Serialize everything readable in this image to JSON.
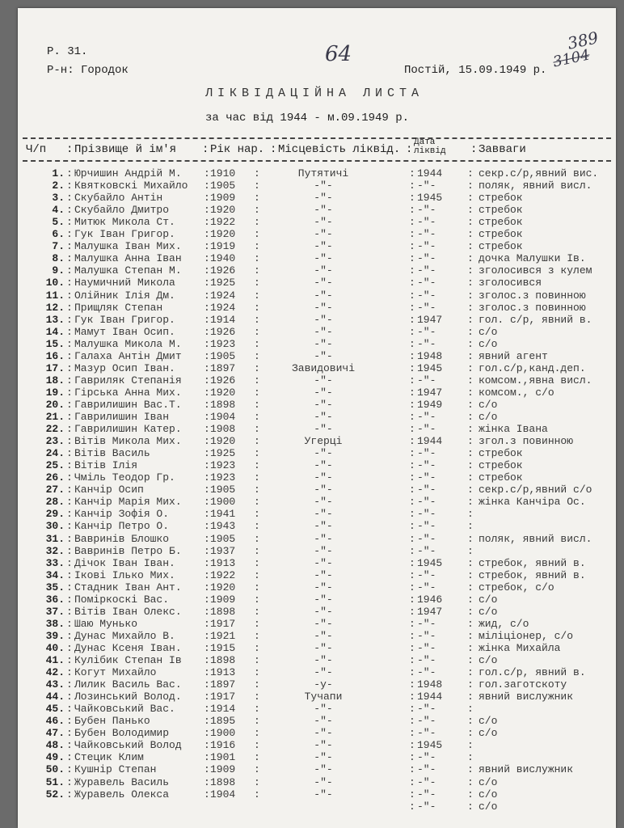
{
  "document": {
    "fund": "Р. 31.",
    "district": "Р-н: Городок",
    "place_date": "Постій, 15.09.1949 р.",
    "title": "ЛІКВІДАЦІЙНА ЛИСТА",
    "subtitle": "за час від 1944 - м.09.1949 р.",
    "handwritten_page": "64",
    "handwritten_number": "389",
    "handwritten_crossed": "3104"
  },
  "table": {
    "columns": [
      "Ч/п",
      "Прізвище й ім'я",
      "Рік нар.",
      "Місцевість ліквід.",
      "Дата ліквід",
      "Завваги"
    ],
    "rows": [
      [
        "1.",
        "Юрчишин Андрій М.",
        "1910",
        "Путятичі",
        "1944",
        "секр.с/р,явний вис."
      ],
      [
        "2.",
        "Квятковскі Михайло",
        "1905",
        "-\"-",
        "-\"-",
        "поляк, явний висл."
      ],
      [
        "3.",
        "Скубайло Антін",
        "1909",
        "-\"-",
        "1945",
        "стребок"
      ],
      [
        "4.",
        "Скубайло Дмитро",
        "1920",
        "-\"-",
        "-\"-",
        "стребок"
      ],
      [
        "5.",
        "Митюк Микола Ст.",
        "1922",
        "-\"-",
        "-\"-",
        "стребок"
      ],
      [
        "6.",
        "Гук Іван Григор.",
        "1920",
        "-\"-",
        "-\"-",
        "стребок"
      ],
      [
        "7.",
        "Малушка Іван Мих.",
        "1919",
        "-\"-",
        "-\"-",
        "стребок"
      ],
      [
        "8.",
        "Малушка Анна Іван",
        "1940",
        "-\"-",
        "-\"-",
        "дочка Малушки Ів."
      ],
      [
        "9.",
        "Малушка Степан М.",
        "1926",
        "-\"-",
        "-\"-",
        "зголосився з кулем"
      ],
      [
        "10.",
        "Наумичний Микола",
        "1925",
        "-\"-",
        "-\"-",
        "зголосився"
      ],
      [
        "11.",
        "Олійник Ілія Дм.",
        "1924",
        "-\"-",
        "-\"-",
        "зголос.з повинною"
      ],
      [
        "12.",
        "Прищляк Степан",
        "1924",
        "-\"-",
        "-\"-",
        "зголос.з повинною"
      ],
      [
        "13.",
        "Гук Іван Григор.",
        "1914",
        "-\"-",
        "1947",
        "гол. с/р, явний в."
      ],
      [
        "14.",
        "Мамут Іван Осип.",
        "1926",
        "-\"-",
        "-\"-",
        "с/о"
      ],
      [
        "15.",
        "Малушка Микола М.",
        "1923",
        "-\"-",
        "-\"-",
        "с/о"
      ],
      [
        "16.",
        "Галаха Антін Дмит",
        "1905",
        "-\"-",
        "1948",
        "явний агент"
      ],
      [
        "17.",
        "Мазур Осип Іван.",
        "1897",
        "Завидовичі",
        "1945",
        "гол.с/р,канд.деп."
      ],
      [
        "18.",
        "Гавриляк Степанія",
        "1926",
        "-\"-",
        "-\"-",
        "комсом.,явна висл."
      ],
      [
        "19.",
        "Гірська Анна Мих.",
        "1920",
        "-\"-",
        "1947",
        "комсом., с/о"
      ],
      [
        "20.",
        "Гаврилишин Вас.Т.",
        "1898",
        "-\"-",
        "1949",
        "с/о"
      ],
      [
        "21.",
        "Гаврилишин Іван",
        "1904",
        "-\"-",
        "-\"-",
        "с/о"
      ],
      [
        "22.",
        "Гаврилишин Катер.",
        "1908",
        "-\"-",
        "-\"-",
        "жінка Івана"
      ],
      [
        "23.",
        "Вітів Микола Мих.",
        "1920",
        "Угерці",
        "1944",
        "згол.з повинною"
      ],
      [
        "24.",
        "Вітів Василь",
        "1925",
        "-\"-",
        "-\"-",
        "стребок"
      ],
      [
        "25.",
        "Вітів Ілія",
        "1923",
        "-\"-",
        "-\"-",
        "стребок"
      ],
      [
        "26.",
        "Чміль Теодор Гр.",
        "1923",
        "-\"-",
        "-\"-",
        "стребок"
      ],
      [
        "27.",
        "Канчір Осип",
        "1905",
        "-\"-",
        "-\"-",
        "секр.с/р,явний с/о"
      ],
      [
        "28.",
        "Канчір Марія Мих.",
        "1900",
        "-\"-",
        "-\"-",
        "жінка Канчіра Ос."
      ],
      [
        "29.",
        "Канчір Зофія О.",
        "1941",
        "-\"-",
        "-\"-",
        ""
      ],
      [
        "30.",
        "Канчір Петро О.",
        "1943",
        "-\"-",
        "-\"-",
        ""
      ],
      [
        "31.",
        "Вавринів Блошко",
        "1905",
        "-\"-",
        "-\"-",
        "поляк, явний висл."
      ],
      [
        "32.",
        "Вавринів Петро Б.",
        "1937",
        "-\"-",
        "-\"-",
        ""
      ],
      [
        "33.",
        "Дічок Іван Іван.",
        "1913",
        "-\"-",
        "1945",
        "стребок, явний в."
      ],
      [
        "34.",
        "Ікові Ілько Мих.",
        "1922",
        "-\"-",
        "-\"-",
        "стребок, явний в."
      ],
      [
        "35.",
        "Стадник Іван Ант.",
        "1920",
        "-\"-",
        "-\"-",
        "стребок, с/о"
      ],
      [
        "36.",
        "Поміркоскі Вас.",
        "1909",
        "-\"-",
        "1946",
        "с/о"
      ],
      [
        "37.",
        "Вітів Іван Олекс.",
        "1898",
        "-\"-",
        "1947",
        "с/о"
      ],
      [
        "38.",
        "Шаю Мунько",
        "1917",
        "-\"-",
        "-\"-",
        "жид, с/о"
      ],
      [
        "39.",
        "Дунас Михайло В.",
        "1921",
        "-\"-",
        "-\"-",
        "міліціонер, с/о"
      ],
      [
        "40.",
        "Дунас Ксеня Іван.",
        "1915",
        "-\"-",
        "-\"-",
        "жінка Михайла"
      ],
      [
        "41.",
        "Кулібик Степан Ів",
        "1898",
        "-\"-",
        "-\"-",
        "с/о"
      ],
      [
        "42.",
        "Когут Михайло",
        "1913",
        "-\"-",
        "-\"-",
        "гол.с/р, явний в."
      ],
      [
        "43.",
        "Лилик Василь Вас.",
        "1897",
        "-у-",
        "1948",
        "гол.заготскоту"
      ],
      [
        "44.",
        "Лозинський Волод.",
        "1917",
        "Тучапи",
        "1944",
        "явний вислужник"
      ],
      [
        "45.",
        "Чайковський Вас.",
        "1914",
        "-\"-",
        "-\"-",
        ""
      ],
      [
        "46.",
        "Бубен Панько",
        "1895",
        "-\"-",
        "-\"-",
        "с/о"
      ],
      [
        "47.",
        "Бубен Володимир",
        "1900",
        "-\"-",
        "-\"-",
        "с/о"
      ],
      [
        "48.",
        "Чайковський Волод",
        "1916",
        "-\"-",
        "1945",
        ""
      ],
      [
        "49.",
        "Стецик Клим",
        "1901",
        "-\"-",
        "-\"-",
        ""
      ],
      [
        "50.",
        "Кушнір Степан",
        "1909",
        "-\"-",
        "-\"-",
        "явний вислужник"
      ],
      [
        "51.",
        "Журавель Василь",
        "1898",
        "-\"-",
        "-\"-",
        "с/о"
      ],
      [
        "52.",
        "Журавель Олекса",
        "1904",
        "-\"-",
        "-\"-",
        "с/о"
      ],
      [
        "",
        "",
        "",
        "",
        "-\"-",
        "с/о"
      ]
    ]
  }
}
